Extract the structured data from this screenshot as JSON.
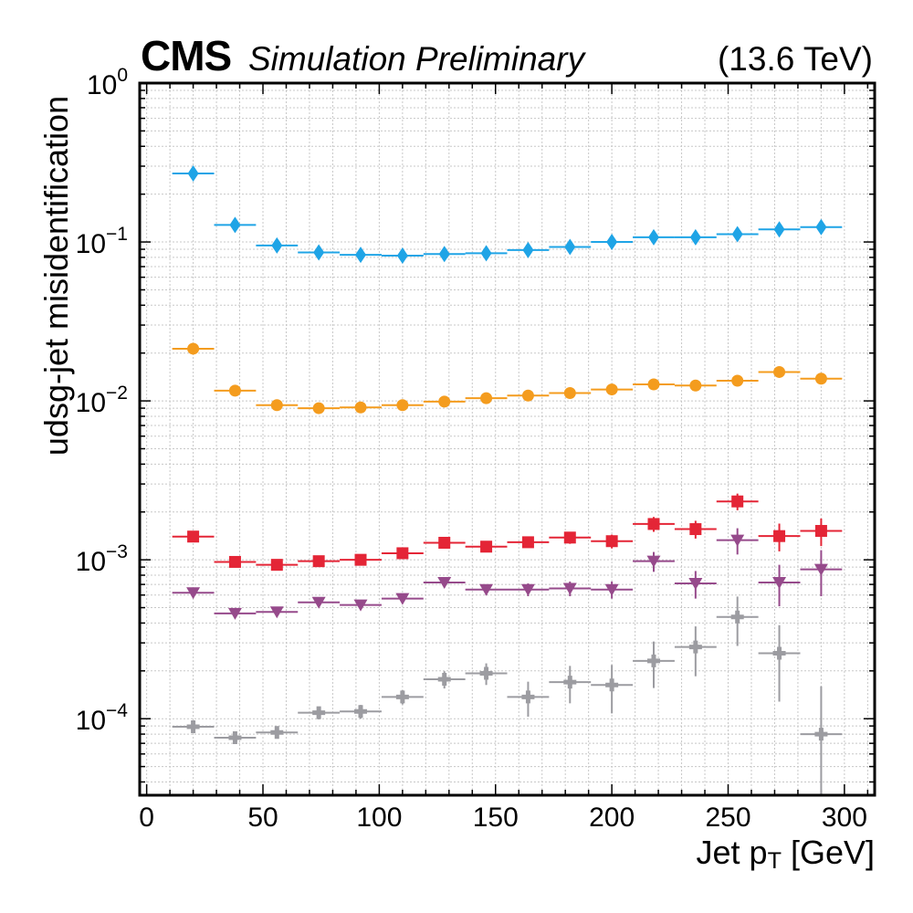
{
  "header": {
    "experiment": "CMS",
    "subtitle": "Simulation Preliminary",
    "energy": "(13.6 TeV)"
  },
  "chart_data": {
    "type": "scatter",
    "xlabel": "Jet p_T [GeV]",
    "ylabel": "udsg-jet misidentification",
    "xlim": [
      -3,
      313
    ],
    "ylim": [
      3.3e-05,
      1
    ],
    "yscale": "log",
    "grid": true,
    "x_ticks": [
      0,
      50,
      100,
      150,
      200,
      250,
      300
    ],
    "y_ticks": [
      {
        "value": 0.0001,
        "base": "10",
        "exp": "−4"
      },
      {
        "value": 0.001,
        "base": "10",
        "exp": "−3"
      },
      {
        "value": 0.01,
        "base": "10",
        "exp": "−2"
      },
      {
        "value": 0.1,
        "base": "10",
        "exp": "−1"
      },
      {
        "value": 1,
        "base": "10",
        "exp": "0"
      }
    ],
    "x_centers": [
      20,
      38,
      56,
      74,
      92,
      110,
      128,
      146,
      164,
      182,
      200,
      218,
      236,
      254,
      272,
      290
    ],
    "x_halfwidth": 9,
    "series": [
      {
        "marker": "diamond",
        "color": "#1fa4e6",
        "values": [
          0.27,
          0.128,
          0.095,
          0.086,
          0.083,
          0.082,
          0.084,
          0.085,
          0.089,
          0.093,
          0.1,
          0.107,
          0.107,
          0.112,
          0.12,
          0.124
        ],
        "errors": [
          0.012,
          0.006,
          0.004,
          0.003,
          0.003,
          0.003,
          0.003,
          0.003,
          0.003,
          0.004,
          0.004,
          0.005,
          0.005,
          0.006,
          0.007,
          0.008
        ]
      },
      {
        "marker": "circle",
        "color": "#f49c1e",
        "values": [
          0.0213,
          0.0116,
          0.0094,
          0.009,
          0.0091,
          0.0094,
          0.0099,
          0.0104,
          0.0108,
          0.0112,
          0.0118,
          0.0127,
          0.0125,
          0.0134,
          0.0152,
          0.0138
        ],
        "errors": [
          0.0007,
          0.0004,
          0.0003,
          0.0003,
          0.0003,
          0.0003,
          0.0003,
          0.0003,
          0.0003,
          0.0004,
          0.0004,
          0.0005,
          0.0005,
          0.0006,
          0.0007,
          0.0008
        ]
      },
      {
        "marker": "square",
        "color": "#e42536",
        "values": [
          0.0014,
          0.00097,
          0.00093,
          0.00098,
          0.001,
          0.0011,
          0.00128,
          0.00121,
          0.00129,
          0.00138,
          0.00131,
          0.00168,
          0.00156,
          0.00233,
          0.00141,
          0.00152
        ],
        "errors": [
          8e-05,
          5e-05,
          5e-05,
          5e-05,
          6e-05,
          7e-05,
          8e-05,
          9e-05,
          0.0001,
          0.00012,
          0.00013,
          0.00018,
          0.0002,
          0.00028,
          0.00028,
          0.0003
        ]
      },
      {
        "marker": "triangle-down",
        "color": "#964a8b",
        "values": [
          0.00062,
          0.00046,
          0.00047,
          0.00054,
          0.00052,
          0.00057,
          0.00072,
          0.00065,
          0.00065,
          0.00066,
          0.00065,
          0.00098,
          0.00071,
          0.00133,
          0.00072,
          0.00087
        ],
        "errors": [
          4e-05,
          3e-05,
          3e-05,
          3e-05,
          3e-05,
          4e-05,
          5e-05,
          5e-05,
          6e-05,
          7e-05,
          8e-05,
          0.00014,
          0.00014,
          0.00025,
          0.00021,
          0.00028
        ]
      },
      {
        "marker": "plus",
        "color": "#9c9ca1",
        "values": [
          8.9e-05,
          7.6e-05,
          8.2e-05,
          0.000109,
          0.000111,
          0.000137,
          0.000177,
          0.000193,
          0.000137,
          0.00017,
          0.000163,
          0.000231,
          0.000283,
          0.000437,
          0.000258,
          8e-05
        ],
        "errors": [
          7e-06,
          6e-06,
          7e-06,
          1e-05,
          1.1e-05,
          1.4e-05,
          2.2e-05,
          3e-05,
          3.4e-05,
          4.5e-05,
          5.5e-05,
          7.5e-05,
          9.8e-05,
          0.00015,
          0.00013,
          8e-05
        ]
      }
    ]
  }
}
